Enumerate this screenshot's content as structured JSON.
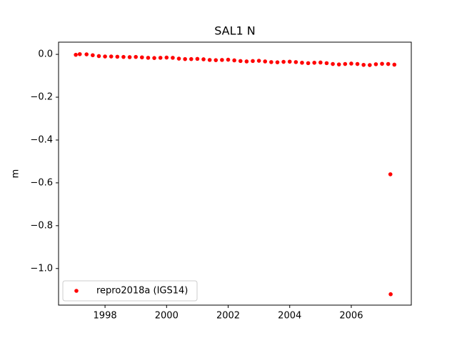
{
  "chart_data": {
    "type": "scatter",
    "title": "SAL1 N",
    "ylabel": "m",
    "xlim": [
      1996.49,
      2007.95
    ],
    "ylim": [
      -1.171,
      0.057
    ],
    "xticks": [
      1998,
      2000,
      2002,
      2004,
      2006
    ],
    "yticks": [
      {
        "value": 0.0,
        "label": "0.0"
      },
      {
        "value": -0.2,
        "label": "−0.2"
      },
      {
        "value": -0.4,
        "label": "−0.4"
      },
      {
        "value": -0.6,
        "label": "−0.6"
      },
      {
        "value": -0.8,
        "label": "−0.8"
      },
      {
        "value": -1.0,
        "label": "−1.0"
      }
    ],
    "grid": false,
    "legend": "lower left",
    "series": [
      {
        "name": "repro2018a (IGS14)",
        "color": "#ff0000",
        "x": [
          1997.05,
          1997.18,
          1997.4,
          1997.6,
          1997.8,
          1998.0,
          1998.2,
          1998.4,
          1998.6,
          1998.8,
          1999.0,
          1999.2,
          1999.4,
          1999.6,
          1999.8,
          2000.0,
          2000.2,
          2000.4,
          2000.6,
          2000.8,
          2001.0,
          2001.2,
          2001.4,
          2001.6,
          2001.8,
          2002.0,
          2002.2,
          2002.4,
          2002.6,
          2002.8,
          2003.0,
          2003.2,
          2003.4,
          2003.6,
          2003.8,
          2004.0,
          2004.2,
          2004.4,
          2004.6,
          2004.8,
          2005.0,
          2005.2,
          2005.4,
          2005.6,
          2005.8,
          2006.0,
          2006.2,
          2006.4,
          2006.6,
          2006.8,
          2007.0,
          2007.2,
          2007.27,
          2007.28,
          2007.4
        ],
        "values": [
          -0.002,
          0.001,
          0.0,
          -0.004,
          -0.008,
          -0.01,
          -0.01,
          -0.011,
          -0.012,
          -0.013,
          -0.012,
          -0.014,
          -0.016,
          -0.017,
          -0.016,
          -0.015,
          -0.016,
          -0.02,
          -0.022,
          -0.022,
          -0.021,
          -0.023,
          -0.026,
          -0.027,
          -0.026,
          -0.025,
          -0.028,
          -0.031,
          -0.033,
          -0.031,
          -0.03,
          -0.033,
          -0.036,
          -0.037,
          -0.035,
          -0.034,
          -0.036,
          -0.039,
          -0.041,
          -0.039,
          -0.038,
          -0.041,
          -0.045,
          -0.047,
          -0.045,
          -0.043,
          -0.045,
          -0.049,
          -0.05,
          -0.046,
          -0.044,
          -0.045,
          -0.56,
          -1.12,
          -0.048
        ]
      }
    ]
  }
}
